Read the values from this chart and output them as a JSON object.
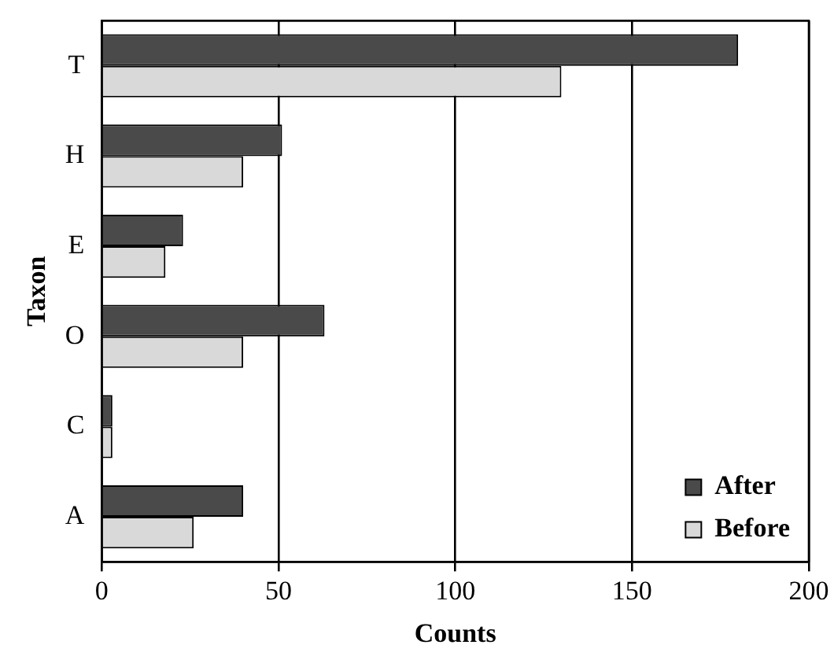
{
  "chart_data": {
    "type": "bar",
    "orientation": "horizontal",
    "xlabel": "Counts",
    "ylabel": "Taxon",
    "categories": [
      "T",
      "H",
      "E",
      "O",
      "C",
      "A"
    ],
    "series": [
      {
        "name": "After",
        "color": "#4a4a4a",
        "values": [
          180,
          51,
          23,
          63,
          3,
          40
        ]
      },
      {
        "name": "Before",
        "color": "#d9d9d9",
        "values": [
          130,
          40,
          18,
          40,
          3,
          26
        ]
      }
    ],
    "xlim": [
      0,
      200
    ],
    "xticks": [
      0,
      50,
      100,
      150,
      200
    ],
    "grid": "x",
    "legend": "bottom right"
  }
}
